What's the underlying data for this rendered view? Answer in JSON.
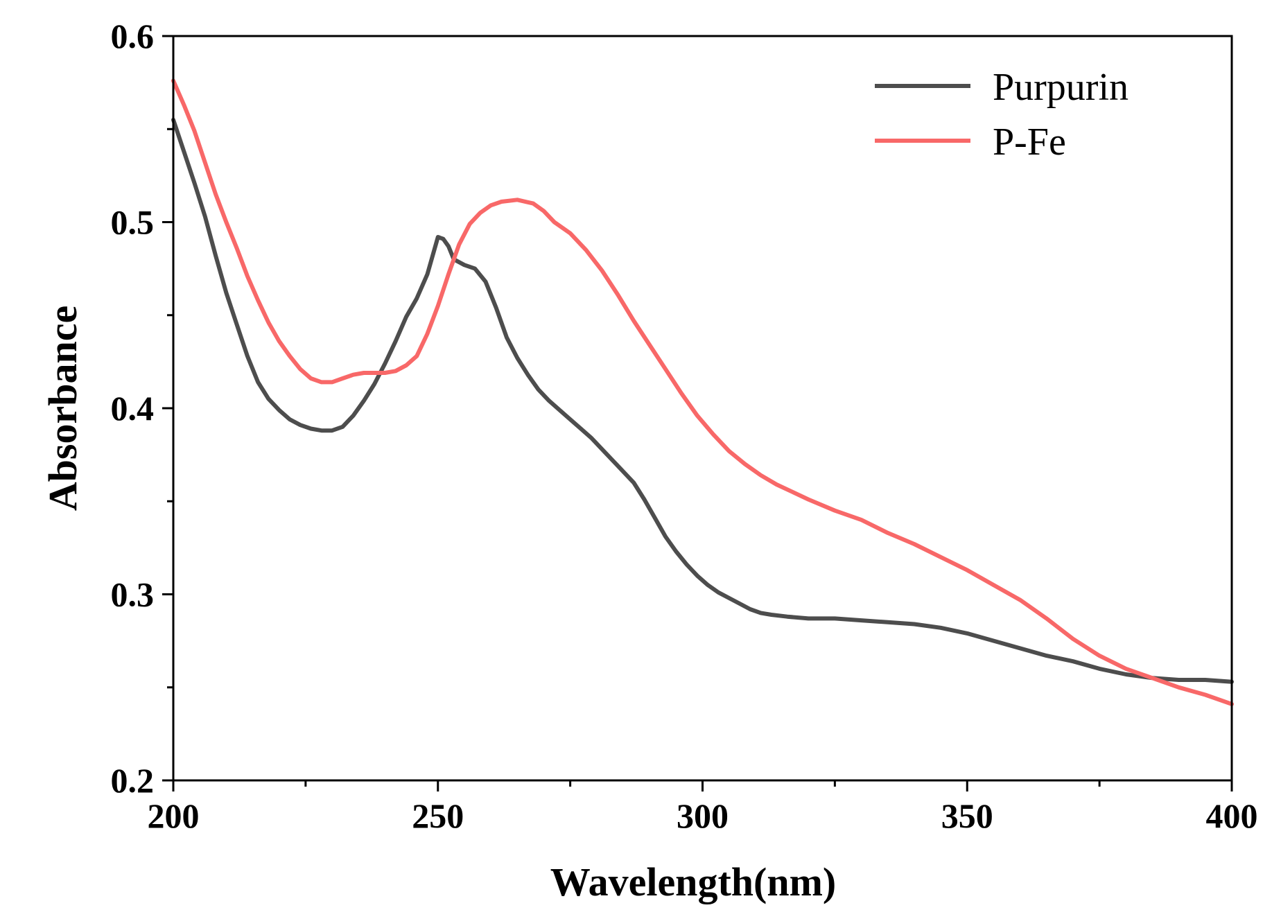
{
  "chart_data": {
    "type": "line",
    "title": "",
    "xlabel": "Wavelength(nm)",
    "ylabel": "Absorbance",
    "xlim": [
      200,
      400
    ],
    "ylim": [
      0.2,
      0.6
    ],
    "x_ticks": [
      200,
      250,
      300,
      350,
      400
    ],
    "x_tick_labels": [
      "200",
      "250",
      "300",
      "350",
      "400"
    ],
    "x_minor_ticks": [
      225,
      275,
      325,
      375
    ],
    "y_ticks": [
      0.2,
      0.3,
      0.4,
      0.5,
      0.6
    ],
    "y_tick_labels": [
      "0.2",
      "0.3",
      "0.4",
      "0.5",
      "0.6"
    ],
    "y_minor_ticks": [
      0.25,
      0.35,
      0.45,
      0.55
    ],
    "grid": false,
    "legend": "top-right",
    "series": [
      {
        "name": "Purpurin",
        "color": "#4d4d4d",
        "points": [
          [
            200,
            0.555
          ],
          [
            202,
            0.538
          ],
          [
            204,
            0.521
          ],
          [
            206,
            0.503
          ],
          [
            208,
            0.482
          ],
          [
            210,
            0.462
          ],
          [
            212,
            0.445
          ],
          [
            214,
            0.428
          ],
          [
            216,
            0.414
          ],
          [
            218,
            0.405
          ],
          [
            220,
            0.399
          ],
          [
            222,
            0.394
          ],
          [
            224,
            0.391
          ],
          [
            226,
            0.389
          ],
          [
            228,
            0.388
          ],
          [
            230,
            0.388
          ],
          [
            232,
            0.39
          ],
          [
            234,
            0.396
          ],
          [
            236,
            0.404
          ],
          [
            238,
            0.413
          ],
          [
            240,
            0.424
          ],
          [
            242,
            0.436
          ],
          [
            244,
            0.449
          ],
          [
            246,
            0.459
          ],
          [
            248,
            0.472
          ],
          [
            250,
            0.492
          ],
          [
            251,
            0.491
          ],
          [
            252,
            0.487
          ],
          [
            253,
            0.48
          ],
          [
            255,
            0.477
          ],
          [
            257,
            0.475
          ],
          [
            259,
            0.468
          ],
          [
            261,
            0.454
          ],
          [
            263,
            0.438
          ],
          [
            265,
            0.427
          ],
          [
            267,
            0.418
          ],
          [
            269,
            0.41
          ],
          [
            271,
            0.404
          ],
          [
            273,
            0.399
          ],
          [
            275,
            0.394
          ],
          [
            277,
            0.389
          ],
          [
            279,
            0.384
          ],
          [
            281,
            0.378
          ],
          [
            283,
            0.372
          ],
          [
            285,
            0.366
          ],
          [
            287,
            0.36
          ],
          [
            289,
            0.351
          ],
          [
            291,
            0.341
          ],
          [
            293,
            0.331
          ],
          [
            295,
            0.323
          ],
          [
            297,
            0.316
          ],
          [
            299,
            0.31
          ],
          [
            301,
            0.305
          ],
          [
            303,
            0.301
          ],
          [
            305,
            0.298
          ],
          [
            307,
            0.295
          ],
          [
            309,
            0.292
          ],
          [
            311,
            0.29
          ],
          [
            313,
            0.289
          ],
          [
            316,
            0.288
          ],
          [
            320,
            0.287
          ],
          [
            325,
            0.287
          ],
          [
            330,
            0.286
          ],
          [
            335,
            0.285
          ],
          [
            340,
            0.284
          ],
          [
            345,
            0.282
          ],
          [
            350,
            0.279
          ],
          [
            355,
            0.275
          ],
          [
            360,
            0.271
          ],
          [
            365,
            0.267
          ],
          [
            370,
            0.264
          ],
          [
            375,
            0.26
          ],
          [
            380,
            0.257
          ],
          [
            385,
            0.255
          ],
          [
            390,
            0.254
          ],
          [
            395,
            0.254
          ],
          [
            400,
            0.253
          ]
        ]
      },
      {
        "name": "P-Fe",
        "color": "#f86868",
        "points": [
          [
            200,
            0.576
          ],
          [
            202,
            0.563
          ],
          [
            204,
            0.549
          ],
          [
            206,
            0.532
          ],
          [
            208,
            0.515
          ],
          [
            210,
            0.5
          ],
          [
            212,
            0.486
          ],
          [
            214,
            0.471
          ],
          [
            216,
            0.458
          ],
          [
            218,
            0.446
          ],
          [
            220,
            0.436
          ],
          [
            222,
            0.428
          ],
          [
            224,
            0.421
          ],
          [
            226,
            0.416
          ],
          [
            228,
            0.414
          ],
          [
            230,
            0.414
          ],
          [
            232,
            0.416
          ],
          [
            234,
            0.418
          ],
          [
            236,
            0.419
          ],
          [
            238,
            0.419
          ],
          [
            240,
            0.419
          ],
          [
            242,
            0.42
          ],
          [
            244,
            0.423
          ],
          [
            246,
            0.428
          ],
          [
            248,
            0.44
          ],
          [
            250,
            0.455
          ],
          [
            252,
            0.472
          ],
          [
            254,
            0.488
          ],
          [
            256,
            0.499
          ],
          [
            258,
            0.505
          ],
          [
            260,
            0.509
          ],
          [
            262,
            0.511
          ],
          [
            265,
            0.512
          ],
          [
            268,
            0.51
          ],
          [
            270,
            0.506
          ],
          [
            272,
            0.5
          ],
          [
            275,
            0.494
          ],
          [
            278,
            0.485
          ],
          [
            281,
            0.474
          ],
          [
            284,
            0.461
          ],
          [
            287,
            0.447
          ],
          [
            290,
            0.434
          ],
          [
            293,
            0.421
          ],
          [
            296,
            0.408
          ],
          [
            299,
            0.396
          ],
          [
            302,
            0.386
          ],
          [
            305,
            0.377
          ],
          [
            308,
            0.37
          ],
          [
            311,
            0.364
          ],
          [
            314,
            0.359
          ],
          [
            317,
            0.355
          ],
          [
            320,
            0.351
          ],
          [
            325,
            0.345
          ],
          [
            330,
            0.34
          ],
          [
            335,
            0.333
          ],
          [
            340,
            0.327
          ],
          [
            345,
            0.32
          ],
          [
            350,
            0.313
          ],
          [
            355,
            0.305
          ],
          [
            360,
            0.297
          ],
          [
            365,
            0.287
          ],
          [
            370,
            0.276
          ],
          [
            375,
            0.267
          ],
          [
            380,
            0.26
          ],
          [
            385,
            0.255
          ],
          [
            390,
            0.25
          ],
          [
            395,
            0.246
          ],
          [
            400,
            0.241
          ]
        ]
      }
    ]
  }
}
